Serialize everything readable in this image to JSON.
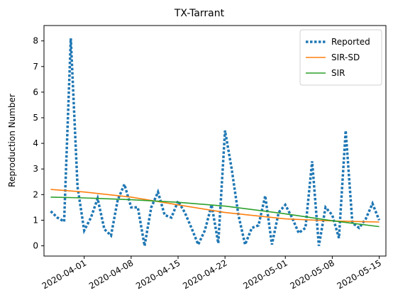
{
  "chart_data": {
    "type": "line",
    "title": "TX-Tarrant",
    "xlabel": "",
    "ylabel": "Reproduction Number",
    "x_axis_type": "date",
    "xlim": [
      "2020-03-26",
      "2020-05-16"
    ],
    "ylim": [
      -0.4,
      8.6
    ],
    "x_ticks": [
      "2020-04-01",
      "2020-04-08",
      "2020-04-15",
      "2020-04-22",
      "2020-05-01",
      "2020-05-08",
      "2020-05-15"
    ],
    "y_ticks": [
      0,
      1,
      2,
      3,
      4,
      5,
      6,
      7,
      8
    ],
    "grid": false,
    "legend_position": "top-right",
    "series": [
      {
        "name": "Reported",
        "style": "dotted",
        "color": "#1f77b4",
        "x": [
          "2020-03-27",
          "2020-03-28",
          "2020-03-29",
          "2020-03-30",
          "2020-03-31",
          "2020-04-01",
          "2020-04-02",
          "2020-04-03",
          "2020-04-04",
          "2020-04-05",
          "2020-04-06",
          "2020-04-07",
          "2020-04-08",
          "2020-04-09",
          "2020-04-10",
          "2020-04-11",
          "2020-04-12",
          "2020-04-13",
          "2020-04-14",
          "2020-04-15",
          "2020-04-16",
          "2020-04-17",
          "2020-04-18",
          "2020-04-19",
          "2020-04-20",
          "2020-04-21",
          "2020-04-22",
          "2020-04-23",
          "2020-04-24",
          "2020-04-25",
          "2020-04-26",
          "2020-04-27",
          "2020-04-28",
          "2020-04-29",
          "2020-04-30",
          "2020-05-01",
          "2020-05-02",
          "2020-05-03",
          "2020-05-04",
          "2020-05-05",
          "2020-05-06",
          "2020-05-07",
          "2020-05-08",
          "2020-05-09",
          "2020-05-10",
          "2020-05-11",
          "2020-05-12",
          "2020-05-13",
          "2020-05-14",
          "2020-05-15"
        ],
        "values": [
          1.35,
          1.1,
          0.95,
          8.1,
          2.3,
          0.6,
          1.1,
          1.85,
          0.65,
          0.4,
          1.8,
          2.4,
          1.5,
          1.5,
          0.0,
          1.5,
          2.1,
          1.2,
          1.1,
          1.75,
          1.3,
          0.7,
          0.05,
          0.6,
          1.6,
          0.1,
          4.5,
          3.0,
          1.2,
          0.05,
          0.7,
          0.8,
          1.95,
          0.05,
          1.3,
          1.6,
          1.1,
          0.5,
          0.7,
          3.3,
          0.0,
          1.5,
          1.2,
          0.3,
          4.5,
          0.9,
          0.7,
          1.05,
          1.65,
          1.0
        ]
      },
      {
        "name": "SIR-SD",
        "style": "solid",
        "color": "#ff7f0e",
        "x": [
          "2020-03-27",
          "2020-04-01",
          "2020-04-08",
          "2020-04-15",
          "2020-04-22",
          "2020-05-01",
          "2020-05-08",
          "2020-05-15"
        ],
        "values": [
          2.2,
          2.1,
          1.9,
          1.6,
          1.3,
          1.05,
          0.97,
          0.93
        ]
      },
      {
        "name": "SIR",
        "style": "solid",
        "color": "#2ca02c",
        "x": [
          "2020-03-27",
          "2020-04-01",
          "2020-04-08",
          "2020-04-15",
          "2020-04-22",
          "2020-05-01",
          "2020-05-08",
          "2020-05-15"
        ],
        "values": [
          1.9,
          1.87,
          1.8,
          1.7,
          1.55,
          1.25,
          0.98,
          0.75
        ]
      }
    ]
  }
}
